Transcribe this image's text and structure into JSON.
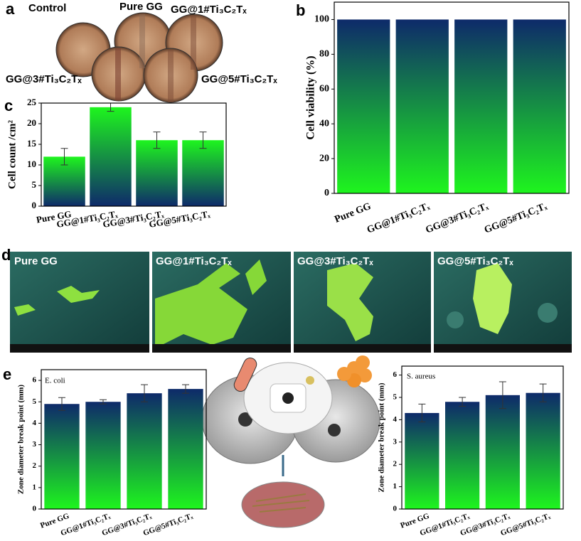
{
  "chart_data": [
    {
      "type": "bar",
      "panel": "b",
      "y_label": "Cell viability (%)",
      "categories": [
        "Pure GG",
        "GG@1#Ti₃C₂Tₓ",
        "GG@3#Ti₃C₂Tₓ",
        "GG@5#Ti₃C₂Tₓ"
      ],
      "values": [
        100,
        100,
        100,
        100
      ],
      "ylim": [
        0,
        110
      ],
      "yticks": [
        0,
        20,
        40,
        60,
        80,
        100
      ],
      "gradient": [
        "#0e2a6a",
        "#1ef51e"
      ]
    },
    {
      "type": "bar",
      "panel": "c",
      "y_label": "Cell count /cm²",
      "categories": [
        "Pure GG",
        "GG@1#Ti₃C₂Tₓ",
        "GG@3#Ti₃C₂Tₓ",
        "GG@5#Ti₃C₂Tₓ"
      ],
      "values": [
        12,
        24,
        16,
        16
      ],
      "errors": [
        2,
        1,
        2,
        2
      ],
      "ylim": [
        0,
        25
      ],
      "yticks": [
        0,
        5,
        10,
        15,
        20,
        25
      ],
      "gradient": [
        "#1ef51e",
        "#0e2a6a"
      ]
    },
    {
      "type": "bar",
      "panel": "e",
      "annotation": "E. coli",
      "y_label": "Zone diameter break point (mm)",
      "categories": [
        "Pure GG",
        "GG@1#Ti₃C₂Tₓ",
        "GG@3#Ti₃C₂Tₓ",
        "GG@5#Ti₃C₂Tₓ"
      ],
      "values": [
        4.9,
        5.0,
        5.4,
        5.6
      ],
      "errors": [
        0.3,
        0.1,
        0.4,
        0.2
      ],
      "ylim": [
        0,
        6.5
      ],
      "yticks": [
        0,
        1,
        2,
        3,
        4,
        5,
        6
      ],
      "gradient": [
        "#0e2a6a",
        "#1ef51e"
      ]
    },
    {
      "type": "bar",
      "annotation": "S. aureus",
      "y_label": "Zone diameter break point (mm)",
      "categories": [
        "Pure GG",
        "GG@1#Ti₃C₂Tₓ",
        "GG@3#Ti₃C₂Tₓ",
        "GG@5#Ti₃C₂Tₓ"
      ],
      "values": [
        4.3,
        4.8,
        5.1,
        5.2
      ],
      "errors": [
        0.4,
        0.2,
        0.6,
        0.4
      ],
      "ylim": [
        0,
        6.4
      ],
      "yticks": [
        0,
        1,
        2,
        3,
        4,
        5,
        6
      ],
      "gradient": [
        "#0e2a6a",
        "#1ef51e"
      ]
    }
  ],
  "panel_a": {
    "letter": "a",
    "labels": [
      "Control",
      "Pure GG",
      "GG@1#Ti₃C₂Tₓ",
      "GG@3#Ti₃C₂Tₓ",
      "GG@5#Ti₃C₂Tₓ"
    ]
  },
  "panel_d": {
    "letter": "d",
    "labels": [
      "Pure GG",
      "GG@1#Ti₃C₂Tₓ",
      "GG@3#Ti₃C₂Tₓ",
      "GG@5#Ti₃C₂Tₓ"
    ]
  }
}
